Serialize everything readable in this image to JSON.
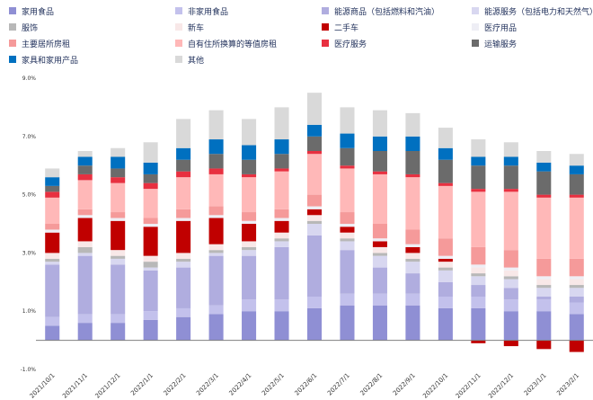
{
  "chart_data": {
    "type": "bar",
    "stacked": true,
    "title": "",
    "xlabel": "",
    "ylabel": "",
    "ylim": [
      -1.0,
      9.0
    ],
    "yticks": [
      "9.0%",
      "7.0%",
      "5.0%",
      "3.0%",
      "1.0%",
      "-1.0%"
    ],
    "ytick_values": [
      9,
      7,
      5,
      3,
      1,
      -1
    ],
    "legend_position": "top",
    "grid": false,
    "categories": [
      "2021/10/1",
      "2021/11/1",
      "2021/12/1",
      "2022/1/1",
      "2022/2/1",
      "2022/3/1",
      "2022/4/1",
      "2022/5/1",
      "2022/6/1",
      "2022/7/1",
      "2022/8/1",
      "2022/9/1",
      "2022/10/1",
      "2022/11/1",
      "2022/12/1",
      "2023/1/1",
      "2023/2/1"
    ],
    "series": [
      {
        "name": "家用食品",
        "color": "#8f8fd4",
        "values": [
          0.5,
          0.6,
          0.6,
          0.7,
          0.8,
          0.9,
          1.0,
          1.0,
          1.1,
          1.2,
          1.2,
          1.2,
          1.1,
          1.1,
          1.0,
          1.0,
          0.9
        ]
      },
      {
        "name": "非家用食品",
        "color": "#c3c1ec",
        "values": [
          0.3,
          0.3,
          0.3,
          0.3,
          0.3,
          0.3,
          0.4,
          0.4,
          0.4,
          0.4,
          0.4,
          0.4,
          0.4,
          0.4,
          0.4,
          0.4,
          0.4
        ]
      },
      {
        "name": "能源商品（包括燃料和汽油）",
        "color": "#b0addf",
        "values": [
          1.8,
          2.0,
          1.7,
          1.4,
          1.4,
          1.7,
          1.5,
          1.8,
          2.1,
          1.5,
          0.9,
          0.7,
          0.5,
          0.4,
          0.4,
          0.1,
          0.2
        ]
      },
      {
        "name": "能源服务（包括电力和天然气）",
        "color": "#d8d7f0",
        "values": [
          0.1,
          0.1,
          0.2,
          0.1,
          0.2,
          0.1,
          0.2,
          0.2,
          0.4,
          0.3,
          0.4,
          0.4,
          0.4,
          0.3,
          0.3,
          0.3,
          0.3
        ]
      },
      {
        "name": "服饰",
        "color": "#b8b8b8",
        "values": [
          0.1,
          0.2,
          0.1,
          0.2,
          0.1,
          0.1,
          0.1,
          0.1,
          0.1,
          0.1,
          0.1,
          0.1,
          0.1,
          0.1,
          0.1,
          0.1,
          0.1
        ]
      },
      {
        "name": "新车",
        "color": "#f8e8e8",
        "values": [
          0.2,
          0.2,
          0.2,
          0.2,
          0.2,
          0.2,
          0.2,
          0.2,
          0.2,
          0.2,
          0.2,
          0.2,
          0.2,
          0.2,
          0.2,
          0.2,
          0.2
        ]
      },
      {
        "name": "二手车",
        "color": "#c00000",
        "values": [
          0.7,
          0.8,
          1.0,
          1.0,
          1.1,
          0.9,
          0.6,
          0.4,
          0.2,
          0.2,
          0.2,
          0.2,
          0.1,
          -0.1,
          -0.2,
          -0.3,
          -0.4
        ]
      },
      {
        "name": "医疗用品",
        "color": "#eeeef5",
        "values": [
          0.1,
          0.1,
          0.1,
          0.1,
          0.1,
          0.1,
          0.1,
          0.1,
          0.1,
          0.1,
          0.1,
          0.1,
          0.1,
          0.1,
          0.1,
          0.1,
          0.1
        ]
      },
      {
        "name": "主要居所房租",
        "color": "#f59a9a",
        "values": [
          0.2,
          0.2,
          0.2,
          0.2,
          0.3,
          0.3,
          0.3,
          0.3,
          0.4,
          0.4,
          0.5,
          0.5,
          0.6,
          0.6,
          0.6,
          0.6,
          0.6
        ]
      },
      {
        "name": "自有住所换算的等值房租",
        "color": "#ffb8b8",
        "values": [
          0.9,
          1.0,
          1.0,
          1.0,
          1.1,
          1.1,
          1.2,
          1.3,
          1.4,
          1.5,
          1.7,
          1.8,
          1.8,
          1.9,
          2.0,
          2.1,
          2.1
        ]
      },
      {
        "name": "医疗服务",
        "color": "#e83040",
        "values": [
          0.2,
          0.2,
          0.2,
          0.2,
          0.2,
          0.2,
          0.1,
          0.1,
          0.1,
          0.1,
          0.1,
          0.1,
          0.1,
          0.1,
          0.1,
          0.1,
          0.1
        ]
      },
      {
        "name": "运输服务",
        "color": "#6b6b6b",
        "values": [
          0.2,
          0.3,
          0.3,
          0.3,
          0.4,
          0.5,
          0.5,
          0.5,
          0.5,
          0.6,
          0.7,
          0.8,
          0.8,
          0.8,
          0.8,
          0.8,
          0.7
        ]
      },
      {
        "name": "家具和家用产品",
        "color": "#0070c0",
        "values": [
          0.3,
          0.3,
          0.4,
          0.4,
          0.4,
          0.5,
          0.5,
          0.5,
          0.4,
          0.5,
          0.5,
          0.5,
          0.4,
          0.3,
          0.3,
          0.3,
          0.3
        ]
      },
      {
        "name": "其他",
        "color": "#d9d9d9",
        "values": [
          0.3,
          0.2,
          0.3,
          0.7,
          1.0,
          1.0,
          0.9,
          1.1,
          1.1,
          0.9,
          0.9,
          0.8,
          0.7,
          0.6,
          0.5,
          0.4,
          0.4
        ]
      }
    ]
  }
}
